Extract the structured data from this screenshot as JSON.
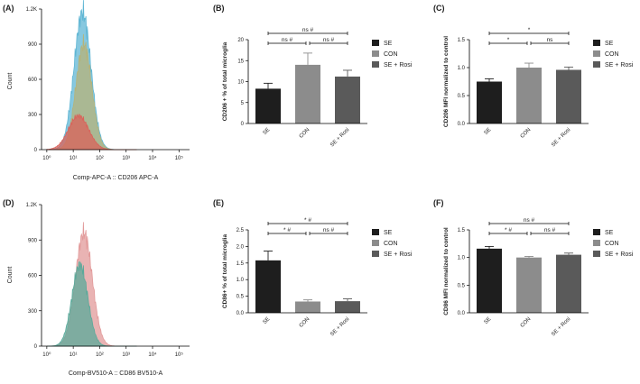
{
  "panels": [
    {
      "id": "A",
      "label": "(A)"
    },
    {
      "id": "B",
      "label": "(B)"
    },
    {
      "id": "C",
      "label": "(C)"
    },
    {
      "id": "D",
      "label": "(D)"
    },
    {
      "id": "E",
      "label": "(E)"
    },
    {
      "id": "F",
      "label": "(F)"
    }
  ],
  "colors": {
    "SE": "#1e1e1e",
    "CON": "#8c8c8c",
    "SE + Rosi": "#5a5a5a",
    "hist_blue": "#5fb6d4",
    "hist_olive": "#b5b37a",
    "hist_red": "#d9625a",
    "hist_teal": "#5aa99a",
    "hist_pink": "#e29a9a"
  },
  "chart_data": [
    {
      "panel": "A",
      "type": "area",
      "xlabel": "Comp-APC-A :: CD206 APC-A",
      "ylabel": "Count",
      "yticks": [
        "0",
        "300",
        "600",
        "900",
        "1.2K"
      ],
      "ylim": [
        0,
        1200
      ],
      "xticks": [
        "10⁰",
        "10¹",
        "10²",
        "10³",
        "10⁴",
        "10⁵"
      ],
      "xlim_log": [
        0,
        5.6
      ],
      "series": [
        {
          "color": "hist_blue",
          "peak_log": 1.55,
          "peak": 1170
        },
        {
          "color": "hist_olive",
          "peak_log": 1.6,
          "peak": 900
        },
        {
          "color": "hist_red",
          "peak_log": 1.4,
          "peak": 290
        }
      ]
    },
    {
      "panel": "B",
      "type": "bar",
      "ylabel": "CD206 + % of total microglia",
      "categories": [
        "SE",
        "CON",
        "SE + Rosi"
      ],
      "values": [
        8.3,
        14,
        11.2
      ],
      "errors": [
        1.3,
        2.8,
        1.5
      ],
      "ylim": [
        0,
        20
      ],
      "yticks": [
        "0",
        "5",
        "10",
        "15",
        "20"
      ],
      "legend": [
        "SE",
        "CON",
        "SE + Rosi"
      ],
      "annotations": [
        {
          "from": 0,
          "to": 2,
          "text": "ns #",
          "level": 2
        },
        {
          "from": 0,
          "to": 1,
          "text": "ns #",
          "level": 1
        },
        {
          "from": 1,
          "to": 2,
          "text": "ns #",
          "level": 1
        }
      ]
    },
    {
      "panel": "C",
      "type": "bar",
      "ylabel": "CD206 MFI normalized to control",
      "categories": [
        "SE",
        "CON",
        "SE + Rosi"
      ],
      "values": [
        0.75,
        1.0,
        0.96
      ],
      "errors": [
        0.05,
        0.08,
        0.05
      ],
      "ylim": [
        0,
        1.5
      ],
      "yticks": [
        "0.0",
        "0.5",
        "1.0",
        "1.5"
      ],
      "legend": [
        "SE",
        "CON",
        "SE + Rosi"
      ],
      "annotations": [
        {
          "from": 0,
          "to": 2,
          "text": "*",
          "level": 2
        },
        {
          "from": 0,
          "to": 1,
          "text": "*",
          "level": 1
        },
        {
          "from": 1,
          "to": 2,
          "text": "ns",
          "level": 1
        }
      ]
    },
    {
      "panel": "D",
      "type": "area",
      "xlabel": "Comp-BV510-A :: CD86 BV510-A",
      "ylabel": "Count",
      "yticks": [
        "0",
        "300",
        "600",
        "900",
        "1.2K"
      ],
      "ylim": [
        0,
        1200
      ],
      "xticks": [
        "10⁰",
        "10¹",
        "10²",
        "10³",
        "10⁴",
        "10⁵"
      ],
      "xlim_log": [
        0,
        5.6
      ],
      "series": [
        {
          "color": "hist_pink",
          "peak_log": 1.6,
          "peak": 960
        },
        {
          "color": "hist_teal",
          "peak_log": 1.45,
          "peak": 690
        }
      ]
    },
    {
      "panel": "E",
      "type": "bar",
      "ylabel": "CD86+ % of total microglia",
      "categories": [
        "SE",
        "CON",
        "SE + Rosi"
      ],
      "values": [
        1.58,
        0.34,
        0.35
      ],
      "errors": [
        0.28,
        0.05,
        0.07
      ],
      "ylim": [
        0,
        2.5
      ],
      "yticks": [
        "0.0",
        "0.5",
        "1.0",
        "1.5",
        "2.0",
        "2.5"
      ],
      "legend": [
        "SE",
        "CON",
        "SE + Rosi"
      ],
      "annotations": [
        {
          "from": 0,
          "to": 2,
          "text": "* #",
          "level": 2
        },
        {
          "from": 0,
          "to": 1,
          "text": "* #",
          "level": 1
        },
        {
          "from": 1,
          "to": 2,
          "text": "ns #",
          "level": 1
        }
      ]
    },
    {
      "panel": "F",
      "type": "bar",
      "ylabel": "CD86 MFI normalized to control",
      "categories": [
        "SE",
        "CON",
        "SE + Rosi"
      ],
      "values": [
        1.16,
        1.0,
        1.05
      ],
      "errors": [
        0.04,
        0.02,
        0.03
      ],
      "ylim": [
        0,
        1.5
      ],
      "yticks": [
        "0.0",
        "0.5",
        "1.0",
        "1.5"
      ],
      "legend": [
        "SE",
        "CON",
        "SE + Rosi"
      ],
      "annotations": [
        {
          "from": 0,
          "to": 2,
          "text": "ns #",
          "level": 2
        },
        {
          "from": 0,
          "to": 1,
          "text": "* #",
          "level": 1
        },
        {
          "from": 1,
          "to": 2,
          "text": "ns #",
          "level": 1
        }
      ]
    }
  ]
}
